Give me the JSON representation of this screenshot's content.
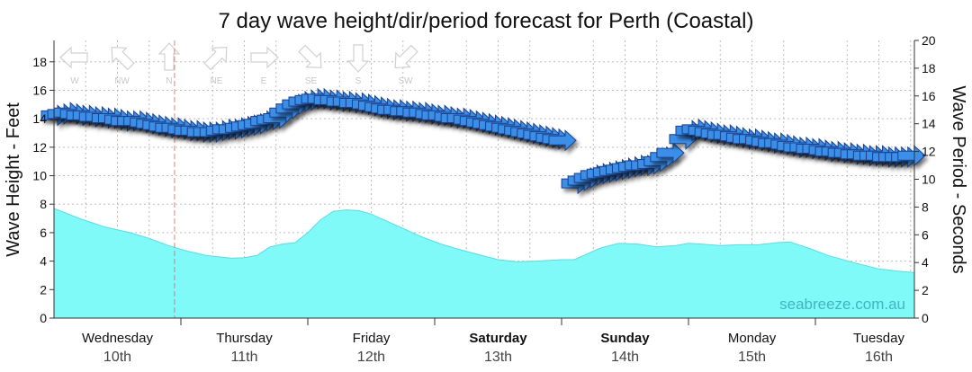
{
  "chart_data": {
    "type": "area",
    "title": "7 day wave height/dir/period forecast for Perth (Coastal)",
    "ylabel_left": "Wave Height - Feet",
    "ylabel_right": "Wave Period - Seconds",
    "ylim_left": [
      0,
      19.5
    ],
    "ylim_right": [
      0,
      20
    ],
    "yticks_left": [
      "0",
      "2",
      "4",
      "6",
      "8",
      "10",
      "12",
      "14",
      "16",
      "18"
    ],
    "yticks_right": [
      "0",
      "2",
      "4",
      "6",
      "8",
      "10",
      "12",
      "14",
      "16",
      "18",
      "20"
    ],
    "grid": true,
    "days": [
      {
        "name": "Wednesday",
        "num": "10th",
        "bold": false
      },
      {
        "name": "Thursday",
        "num": "11th",
        "bold": false
      },
      {
        "name": "Friday",
        "num": "12th",
        "bold": false
      },
      {
        "name": "Saturday",
        "num": "13th",
        "bold": true
      },
      {
        "name": "Sunday",
        "num": "14th",
        "bold": true
      },
      {
        "name": "Monday",
        "num": "15th",
        "bold": false
      },
      {
        "name": "Tuesday",
        "num": "16th",
        "bold": false
      }
    ],
    "x_range_days": [
      0,
      6.78
    ],
    "now_marker_day": 0.95,
    "wave_height": {
      "color": "#80f9f9",
      "points": [
        [
          0,
          7.7
        ],
        [
          0.2,
          7.0
        ],
        [
          0.4,
          6.4
        ],
        [
          0.6,
          6.0
        ],
        [
          0.75,
          5.6
        ],
        [
          0.9,
          5.1
        ],
        [
          1.05,
          4.7
        ],
        [
          1.2,
          4.4
        ],
        [
          1.4,
          4.2
        ],
        [
          1.5,
          4.25
        ],
        [
          1.6,
          4.4
        ],
        [
          1.7,
          5.0
        ],
        [
          1.8,
          5.2
        ],
        [
          1.9,
          5.3
        ],
        [
          2.0,
          6.0
        ],
        [
          2.1,
          6.9
        ],
        [
          2.2,
          7.5
        ],
        [
          2.3,
          7.6
        ],
        [
          2.4,
          7.55
        ],
        [
          2.5,
          7.3
        ],
        [
          2.6,
          6.9
        ],
        [
          2.75,
          6.3
        ],
        [
          2.9,
          5.7
        ],
        [
          3.05,
          5.2
        ],
        [
          3.2,
          4.8
        ],
        [
          3.35,
          4.45
        ],
        [
          3.5,
          4.1
        ],
        [
          3.65,
          3.95
        ],
        [
          3.8,
          4.0
        ],
        [
          4.0,
          4.1
        ],
        [
          4.1,
          4.1
        ],
        [
          4.2,
          4.5
        ],
        [
          4.3,
          4.9
        ],
        [
          4.45,
          5.25
        ],
        [
          4.6,
          5.2
        ],
        [
          4.75,
          5.0
        ],
        [
          4.9,
          5.1
        ],
        [
          5.0,
          5.25
        ],
        [
          5.1,
          5.2
        ],
        [
          5.25,
          5.1
        ],
        [
          5.4,
          5.15
        ],
        [
          5.55,
          5.15
        ],
        [
          5.7,
          5.3
        ],
        [
          5.8,
          5.35
        ],
        [
          5.95,
          4.9
        ],
        [
          6.1,
          4.4
        ],
        [
          6.3,
          3.9
        ],
        [
          6.5,
          3.45
        ],
        [
          6.65,
          3.3
        ],
        [
          6.78,
          3.2
        ]
      ]
    },
    "wave_period_dir": {
      "color": "#3a8fe8",
      "arrows": [
        [
          0.0,
          14.6,
          "W"
        ],
        [
          0.05,
          14.7,
          "W"
        ],
        [
          0.1,
          14.8,
          "W"
        ],
        [
          0.15,
          14.7,
          "W"
        ],
        [
          0.2,
          14.6,
          "W"
        ],
        [
          0.25,
          14.6,
          "W"
        ],
        [
          0.3,
          14.5,
          "W"
        ],
        [
          0.35,
          14.5,
          "W"
        ],
        [
          0.4,
          14.4,
          "W"
        ],
        [
          0.45,
          14.4,
          "W"
        ],
        [
          0.5,
          14.3,
          "W"
        ],
        [
          0.55,
          14.2,
          "W"
        ],
        [
          0.6,
          14.2,
          "W"
        ],
        [
          0.65,
          14.2,
          "W"
        ],
        [
          0.7,
          14.1,
          "W"
        ],
        [
          0.75,
          14.0,
          "W"
        ],
        [
          0.8,
          13.9,
          "W"
        ],
        [
          0.85,
          13.8,
          "W"
        ],
        [
          0.9,
          13.7,
          "W"
        ],
        [
          0.95,
          13.7,
          "W"
        ],
        [
          1.0,
          13.6,
          "W"
        ],
        [
          1.05,
          13.5,
          "W"
        ],
        [
          1.1,
          13.5,
          "W"
        ],
        [
          1.15,
          13.4,
          "W"
        ],
        [
          1.2,
          13.4,
          "W"
        ],
        [
          1.25,
          13.4,
          "W"
        ],
        [
          1.3,
          13.5,
          "W"
        ],
        [
          1.35,
          13.6,
          "W"
        ],
        [
          1.4,
          13.6,
          "W"
        ],
        [
          1.45,
          13.7,
          "W"
        ],
        [
          1.5,
          13.8,
          "W"
        ],
        [
          1.55,
          13.9,
          "W"
        ],
        [
          1.6,
          14.0,
          "W"
        ],
        [
          1.65,
          14.2,
          "W"
        ],
        [
          1.7,
          14.3,
          "W"
        ],
        [
          1.75,
          14.4,
          "W"
        ],
        [
          1.8,
          14.8,
          "W"
        ],
        [
          1.85,
          15.1,
          "W"
        ],
        [
          1.9,
          15.4,
          "W"
        ],
        [
          1.95,
          15.6,
          "W"
        ],
        [
          2.0,
          15.7,
          "W"
        ],
        [
          2.05,
          15.8,
          "W"
        ],
        [
          2.1,
          15.8,
          "W"
        ],
        [
          2.15,
          15.7,
          "W"
        ],
        [
          2.2,
          15.7,
          "W"
        ],
        [
          2.25,
          15.6,
          "W"
        ],
        [
          2.3,
          15.6,
          "W"
        ],
        [
          2.35,
          15.5,
          "W"
        ],
        [
          2.4,
          15.5,
          "W"
        ],
        [
          2.45,
          15.4,
          "W"
        ],
        [
          2.5,
          15.3,
          "W"
        ],
        [
          2.55,
          15.2,
          "W"
        ],
        [
          2.6,
          15.1,
          "W"
        ],
        [
          2.65,
          15.0,
          "W"
        ],
        [
          2.7,
          15.0,
          "W"
        ],
        [
          2.75,
          14.9,
          "W"
        ],
        [
          2.8,
          14.9,
          "W"
        ],
        [
          2.85,
          14.8,
          "W"
        ],
        [
          2.9,
          14.8,
          "W"
        ],
        [
          2.95,
          14.7,
          "W"
        ],
        [
          3.0,
          14.6,
          "W"
        ],
        [
          3.05,
          14.6,
          "W"
        ],
        [
          3.1,
          14.5,
          "W"
        ],
        [
          3.15,
          14.4,
          "W"
        ],
        [
          3.2,
          14.4,
          "W"
        ],
        [
          3.25,
          14.3,
          "W"
        ],
        [
          3.3,
          14.2,
          "W"
        ],
        [
          3.35,
          14.1,
          "W"
        ],
        [
          3.4,
          14.0,
          "W"
        ],
        [
          3.45,
          13.9,
          "W"
        ],
        [
          3.5,
          13.8,
          "W"
        ],
        [
          3.55,
          13.7,
          "W"
        ],
        [
          3.6,
          13.6,
          "W"
        ],
        [
          3.65,
          13.5,
          "W"
        ],
        [
          3.7,
          13.4,
          "W"
        ],
        [
          3.75,
          13.3,
          "W"
        ],
        [
          3.8,
          13.2,
          "W"
        ],
        [
          3.85,
          13.1,
          "W"
        ],
        [
          3.9,
          13.0,
          "W"
        ],
        [
          3.95,
          12.9,
          "W"
        ],
        [
          4.0,
          12.8,
          "W"
        ],
        [
          4.1,
          9.7,
          "W"
        ],
        [
          4.15,
          9.9,
          "W"
        ],
        [
          4.2,
          10.1,
          "W"
        ],
        [
          4.25,
          10.3,
          "W"
        ],
        [
          4.3,
          10.4,
          "W"
        ],
        [
          4.35,
          10.5,
          "W"
        ],
        [
          4.4,
          10.6,
          "W"
        ],
        [
          4.45,
          10.7,
          "W"
        ],
        [
          4.5,
          10.8,
          "W"
        ],
        [
          4.55,
          10.9,
          "W"
        ],
        [
          4.6,
          11.0,
          "W"
        ],
        [
          4.65,
          11.0,
          "W"
        ],
        [
          4.7,
          11.1,
          "W"
        ],
        [
          4.75,
          11.3,
          "W"
        ],
        [
          4.8,
          11.6,
          "W"
        ],
        [
          4.85,
          11.9,
          "W"
        ],
        [
          4.95,
          12.9,
          "W"
        ],
        [
          5.0,
          13.5,
          "W"
        ],
        [
          5.05,
          13.6,
          "W"
        ],
        [
          5.1,
          13.5,
          "W"
        ],
        [
          5.15,
          13.4,
          "W"
        ],
        [
          5.2,
          13.3,
          "W"
        ],
        [
          5.25,
          13.2,
          "W"
        ],
        [
          5.3,
          13.2,
          "W"
        ],
        [
          5.35,
          13.1,
          "W"
        ],
        [
          5.4,
          13.0,
          "W"
        ],
        [
          5.45,
          12.9,
          "W"
        ],
        [
          5.5,
          12.9,
          "W"
        ],
        [
          5.55,
          12.8,
          "W"
        ],
        [
          5.6,
          12.7,
          "W"
        ],
        [
          5.65,
          12.6,
          "W"
        ],
        [
          5.7,
          12.6,
          "W"
        ],
        [
          5.75,
          12.5,
          "W"
        ],
        [
          5.8,
          12.4,
          "W"
        ],
        [
          5.85,
          12.3,
          "W"
        ],
        [
          5.9,
          12.3,
          "W"
        ],
        [
          5.95,
          12.2,
          "W"
        ],
        [
          6.0,
          12.2,
          "W"
        ],
        [
          6.05,
          12.1,
          "W"
        ],
        [
          6.1,
          12.0,
          "W"
        ],
        [
          6.15,
          12.0,
          "W"
        ],
        [
          6.2,
          11.9,
          "W"
        ],
        [
          6.25,
          11.9,
          "W"
        ],
        [
          6.3,
          11.8,
          "W"
        ],
        [
          6.35,
          11.8,
          "W"
        ],
        [
          6.4,
          11.7,
          "W"
        ],
        [
          6.45,
          11.7,
          "W"
        ],
        [
          6.5,
          11.7,
          "W"
        ],
        [
          6.55,
          11.6,
          "W"
        ],
        [
          6.6,
          11.6,
          "W"
        ],
        [
          6.65,
          11.6,
          "W"
        ],
        [
          6.7,
          11.6,
          "W"
        ],
        [
          6.75,
          11.7,
          "W"
        ]
      ]
    },
    "direction_legend": [
      "W",
      "NW",
      "N",
      "NE",
      "E",
      "SE",
      "S",
      "SW"
    ],
    "watermark": "seabreeze.com.au"
  }
}
